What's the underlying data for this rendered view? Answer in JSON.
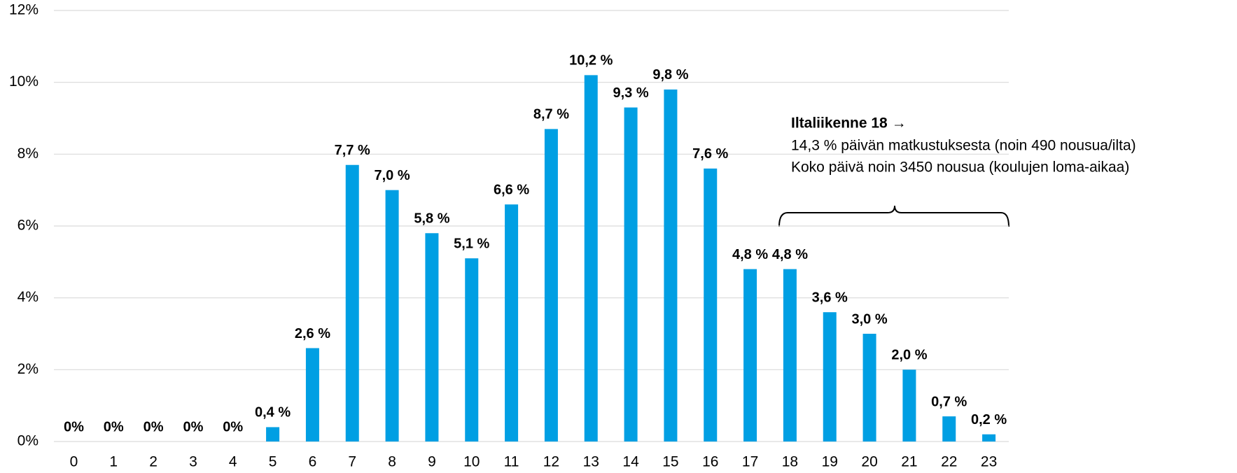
{
  "chart_data": {
    "type": "bar",
    "categories": [
      "0",
      "1",
      "2",
      "3",
      "4",
      "5",
      "6",
      "7",
      "8",
      "9",
      "10",
      "11",
      "12",
      "13",
      "14",
      "15",
      "16",
      "17",
      "18",
      "19",
      "20",
      "21",
      "22",
      "23"
    ],
    "values": [
      0,
      0,
      0,
      0,
      0,
      0.4,
      2.6,
      7.7,
      7.0,
      5.8,
      5.1,
      6.6,
      8.7,
      10.2,
      9.3,
      9.8,
      7.6,
      4.8,
      4.8,
      3.6,
      3.0,
      2.0,
      0.7,
      0.2
    ],
    "value_labels": [
      "0%",
      "0%",
      "0%",
      "0%",
      "0%",
      "0,4 %",
      "2,6 %",
      "7,7 %",
      "7,0 %",
      "5,8 %",
      "5,1 %",
      "6,6 %",
      "8,7 %",
      "10,2 %",
      "9,3 %",
      "9,8 %",
      "7,6 %",
      "4,8 %",
      "4,8 %",
      "3,6 %",
      "3,0 %",
      "2,0 %",
      "0,7 %",
      "0,2 %"
    ],
    "color": "#009fe3",
    "ylim": [
      0,
      12
    ],
    "yticks": [
      {
        "value": 0,
        "label": "0%"
      },
      {
        "value": 2,
        "label": "2%"
      },
      {
        "value": 4,
        "label": "4%"
      },
      {
        "value": 6,
        "label": "6%"
      },
      {
        "value": 8,
        "label": "8%"
      },
      {
        "value": 10,
        "label": "10%"
      },
      {
        "value": 12,
        "label": "12%"
      }
    ],
    "grid": true,
    "annotation": {
      "title": "Iltaliikenne 18 →",
      "lines": [
        "14,3 % päivän matkustuksesta (noin 490 nousua/ilta)",
        "Koko päivä noin 3450 nousua (koulujen loma-aikaa)"
      ]
    }
  }
}
